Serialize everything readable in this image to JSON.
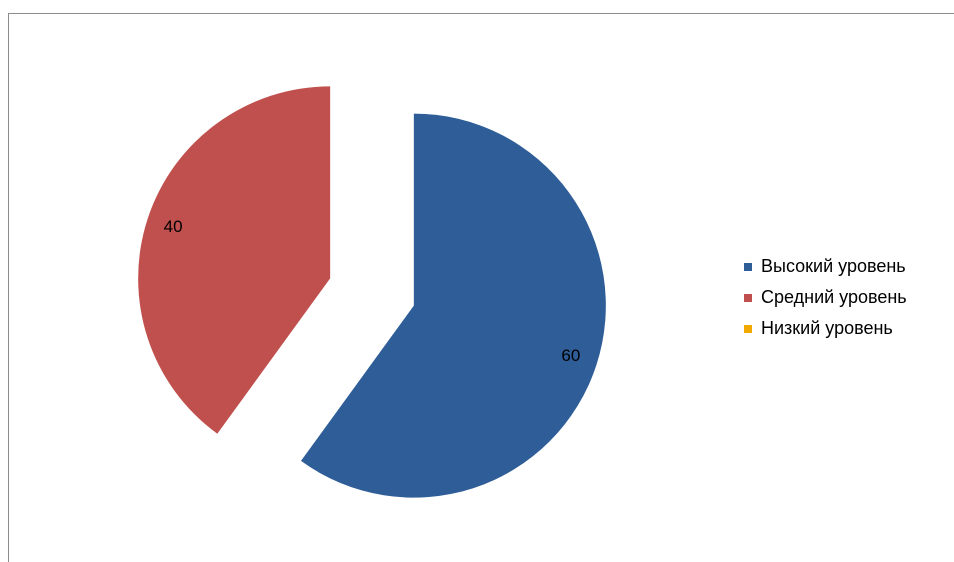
{
  "chart_data": {
    "type": "pie",
    "categories": [
      "Высокий уровень",
      "Средний уровень",
      "Низкий уровень"
    ],
    "values": [
      60,
      40,
      0
    ],
    "colors": [
      "#2f5d98",
      "#c0504d",
      "#f2a900"
    ],
    "data_labels": [
      "60",
      "40",
      ""
    ],
    "exploded": true,
    "start_angle_deg": 0,
    "direction": "clockwise",
    "legend_position": "right"
  }
}
